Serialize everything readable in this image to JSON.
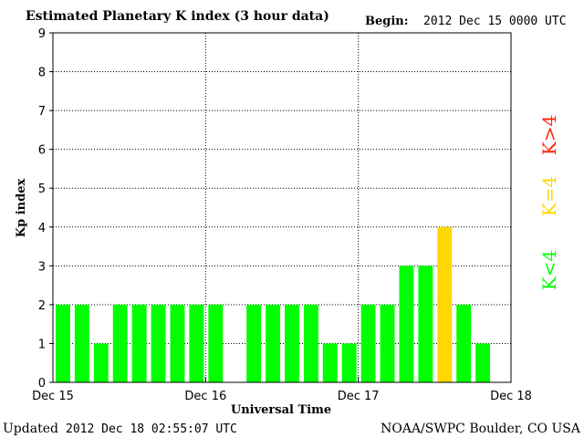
{
  "header": {
    "title": "Estimated Planetary K index (3 hour data)",
    "begin_label": "Begin:",
    "begin_value": "2012 Dec 15 0000 UTC"
  },
  "footer": {
    "updated_label": "Updated",
    "updated_value": "2012 Dec 18 02:55:07 UTC",
    "source": "NOAA/SWPC Boulder, CO USA"
  },
  "legend": {
    "low": "K<4",
    "mid": "K=4",
    "high": "K>4"
  },
  "colors": {
    "low": "#00ff00",
    "mid": "#ffd700",
    "high": "#ff2200"
  },
  "chart_data": {
    "type": "bar",
    "xlabel": "Universal Time",
    "ylabel": "Kp index",
    "ylim": [
      0,
      9
    ],
    "yticks": [
      "0",
      "1",
      "2",
      "3",
      "4",
      "5",
      "6",
      "7",
      "8",
      "9"
    ],
    "xticks": [
      "Dec 15",
      "Dec 16",
      "Dec 17",
      "Dec 18"
    ],
    "interval_hours": 3,
    "values": [
      2,
      2,
      1,
      2,
      2,
      2,
      2,
      2,
      2,
      null,
      2,
      2,
      2,
      2,
      1,
      1,
      2,
      2,
      3,
      3,
      4,
      2,
      1,
      null
    ],
    "grid": true
  }
}
